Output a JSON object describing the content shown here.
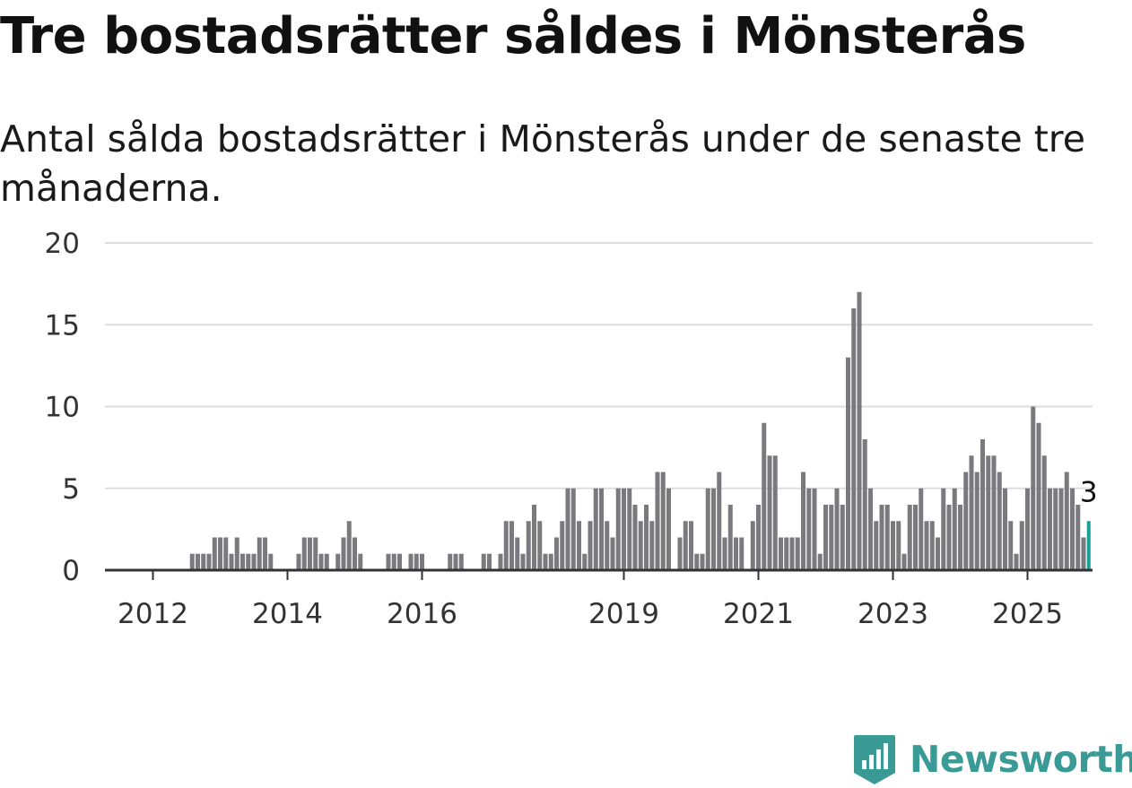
{
  "title": "Tre bostadsrätter såldes i Mönsterås",
  "subtitle": "Antal sålda bostadsrätter i Mönsterås under de senaste tre månaderna.",
  "brand": "Newsworthy",
  "colors": {
    "bar": "#7a7a7e",
    "highlight": "#1a9e96",
    "grid": "#dddddd",
    "axis": "#333333",
    "brand": "#3a9a96"
  },
  "chart_data": {
    "type": "bar",
    "title": "Tre bostadsrätter såldes i Mönsterås",
    "subtitle": "Antal sålda bostadsrätter i Mönsterås under de senaste tre månaderna.",
    "xlabel": "",
    "ylabel": "",
    "ylim": [
      0,
      20
    ],
    "yticks": [
      0,
      5,
      10,
      15,
      20
    ],
    "xticks": [
      "2012",
      "2014",
      "2016",
      "2019",
      "2021",
      "2023",
      "2025"
    ],
    "grid": true,
    "legend": "none",
    "x_start": "2011-09",
    "x_end": "2025-03",
    "values": [
      0,
      0,
      0,
      0,
      0,
      0,
      0,
      0,
      0,
      0,
      0,
      1,
      1,
      1,
      1,
      2,
      2,
      2,
      1,
      2,
      1,
      1,
      1,
      2,
      2,
      1,
      0,
      0,
      0,
      0,
      1,
      2,
      2,
      2,
      1,
      1,
      0,
      1,
      2,
      3,
      2,
      1,
      0,
      0,
      0,
      0,
      1,
      1,
      1,
      0,
      1,
      1,
      1,
      0,
      0,
      0,
      0,
      1,
      1,
      1,
      0,
      0,
      0,
      1,
      1,
      0,
      1,
      3,
      3,
      2,
      1,
      3,
      4,
      3,
      1,
      1,
      2,
      3,
      5,
      5,
      3,
      1,
      3,
      5,
      5,
      3,
      2,
      5,
      5,
      5,
      4,
      3,
      4,
      3,
      6,
      6,
      5,
      0,
      2,
      3,
      3,
      1,
      1,
      5,
      5,
      6,
      2,
      4,
      2,
      2,
      0,
      3,
      4,
      9,
      7,
      7,
      2,
      2,
      2,
      2,
      6,
      5,
      5,
      1,
      4,
      4,
      5,
      4,
      13,
      16,
      17,
      8,
      5,
      3,
      4,
      4,
      3,
      3,
      1,
      4,
      4,
      5,
      3,
      3,
      2,
      5,
      4,
      5,
      4,
      6,
      7,
      6,
      8,
      7,
      7,
      6,
      5,
      3,
      1,
      3,
      5,
      10,
      9,
      7,
      5,
      5,
      5,
      6,
      5,
      4,
      2,
      3
    ],
    "highlight_last": true,
    "annotations": [
      {
        "label": "3",
        "target": "last"
      }
    ]
  }
}
